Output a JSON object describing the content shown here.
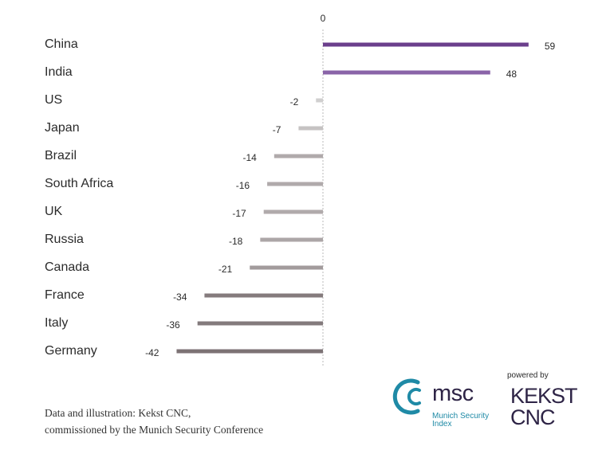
{
  "chart_data": {
    "type": "bar",
    "orientation": "horizontal",
    "categories": [
      "China",
      "India",
      "US",
      "Japan",
      "Brazil",
      "South Africa",
      "UK",
      "Russia",
      "Canada",
      "France",
      "Italy",
      "Germany"
    ],
    "values": [
      59,
      48,
      -2,
      -7,
      -14,
      -16,
      -17,
      -18,
      -21,
      -34,
      -36,
      -42
    ],
    "bar_colors": [
      "#6b3f8c",
      "#8a64a8",
      "#d0cfcf",
      "#c6c3c3",
      "#b0aaab",
      "#b0aaab",
      "#b0aaab",
      "#aca6a7",
      "#a29b9c",
      "#857b7d",
      "#837a7c",
      "#7c7274"
    ],
    "zero_label": "0",
    "xlim": [
      -42,
      59
    ],
    "title": "",
    "xlabel": "",
    "ylabel": ""
  },
  "credit": {
    "line1": "Data and illustration: Kekst CNC,",
    "line2": "commissioned by the Munich Security Conference"
  },
  "logos": {
    "msc_wordmark": "msc",
    "msc_subtitle_line1": "Munich Security",
    "msc_subtitle_line2": "Index",
    "msc_color": "#1f8aa6",
    "powered_by": "powered by",
    "kekst_line1": "KEKST",
    "kekst_line2": "CNC",
    "kekst_color": "#2e2446"
  }
}
